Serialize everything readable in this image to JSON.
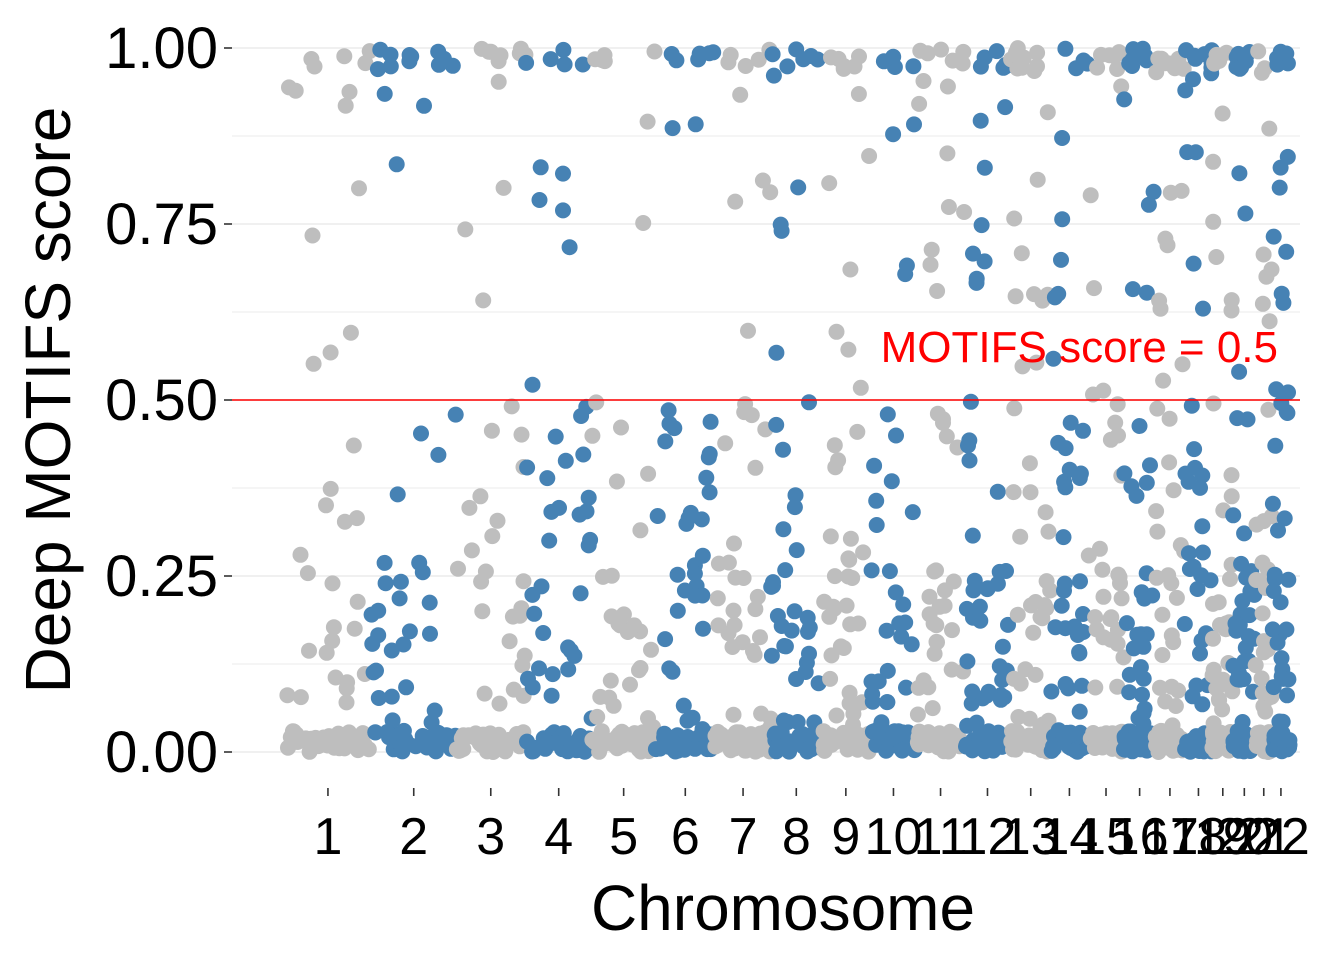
{
  "chart_data": {
    "type": "scatter",
    "title": "",
    "xlabel": "Chromosome",
    "ylabel": "Deep MOTIFS score",
    "ylim": [
      0,
      1
    ],
    "yticks": [
      "0.00",
      "0.25",
      "0.50",
      "0.75",
      "1.00"
    ],
    "chromosomes": [
      {
        "label": "1",
        "start": 0,
        "end": 248,
        "color": "#bebebe"
      },
      {
        "label": "2",
        "start": 248,
        "end": 490,
        "color": "#4682b4"
      },
      {
        "label": "3",
        "start": 490,
        "end": 688,
        "color": "#bebebe"
      },
      {
        "label": "4",
        "start": 688,
        "end": 878,
        "color": "#4682b4"
      },
      {
        "label": "5",
        "start": 878,
        "end": 1059,
        "color": "#bebebe"
      },
      {
        "label": "6",
        "start": 1059,
        "end": 1230,
        "color": "#4682b4"
      },
      {
        "label": "7",
        "start": 1230,
        "end": 1389,
        "color": "#bebebe"
      },
      {
        "label": "8",
        "start": 1389,
        "end": 1534,
        "color": "#4682b4"
      },
      {
        "label": "9",
        "start": 1534,
        "end": 1672,
        "color": "#bebebe"
      },
      {
        "label": "10",
        "start": 1672,
        "end": 1806,
        "color": "#4682b4"
      },
      {
        "label": "11",
        "start": 1806,
        "end": 1941,
        "color": "#bebebe"
      },
      {
        "label": "12",
        "start": 1941,
        "end": 2074,
        "color": "#4682b4"
      },
      {
        "label": "13",
        "start": 2074,
        "end": 2188,
        "color": "#bebebe"
      },
      {
        "label": "14",
        "start": 2188,
        "end": 2295,
        "color": "#4682b4"
      },
      {
        "label": "15",
        "start": 2295,
        "end": 2397,
        "color": "#bebebe"
      },
      {
        "label": "16",
        "start": 2397,
        "end": 2487,
        "color": "#4682b4"
      },
      {
        "label": "17",
        "start": 2487,
        "end": 2570,
        "color": "#bebebe"
      },
      {
        "label": "18",
        "start": 2570,
        "end": 2650,
        "color": "#4682b4"
      },
      {
        "label": "19",
        "start": 2650,
        "end": 2709,
        "color": "#bebebe"
      },
      {
        "label": "20",
        "start": 2709,
        "end": 2773,
        "color": "#4682b4"
      },
      {
        "label": "21",
        "start": 2773,
        "end": 2820,
        "color": "#bebebe"
      },
      {
        "label": "22",
        "start": 2820,
        "end": 2871,
        "color": "#4682b4"
      }
    ],
    "x_range": [
      -150,
      2900
    ],
    "point_profile": [
      {
        "y_range": [
          0.0,
          0.03
        ],
        "fraction": 0.42
      },
      {
        "y_range": [
          0.03,
          0.27
        ],
        "fraction": 0.28
      },
      {
        "y_range": [
          0.27,
          0.5
        ],
        "fraction": 0.1
      },
      {
        "y_range": [
          0.5,
          0.97
        ],
        "fraction": 0.1
      },
      {
        "y_range": [
          0.97,
          1.0
        ],
        "fraction": 0.1
      }
    ],
    "points_per_chromosome": 70,
    "threshold": {
      "value": 0.5,
      "color": "#ff0000",
      "label": "MOTIFS score = 0.5"
    },
    "grid": true
  }
}
